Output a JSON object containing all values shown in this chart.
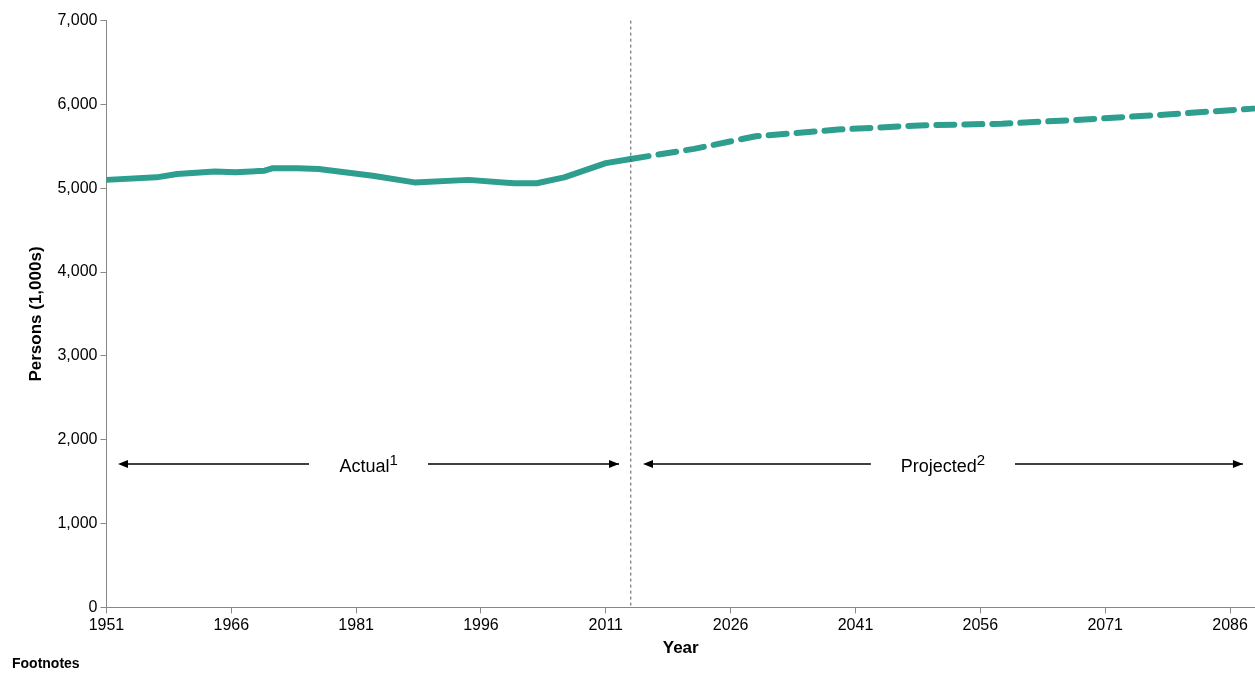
{
  "chart_data": {
    "type": "line",
    "xlabel": "Year",
    "ylabel": "Persons (1,000s)",
    "xlim": [
      1951,
      2089
    ],
    "xticks": [
      1951,
      1966,
      1981,
      1996,
      2011,
      2026,
      2041,
      2056,
      2071,
      2086
    ],
    "ylim": [
      0,
      7000
    ],
    "yticks": [
      0,
      {
        "value": 1000,
        "label": "1,000"
      },
      {
        "value": 2000,
        "label": "2,000"
      },
      {
        "value": 3000,
        "label": "3,000"
      },
      {
        "value": 4000,
        "label": "4,000"
      },
      {
        "value": 5000,
        "label": "5,000"
      },
      {
        "value": 6000,
        "label": "6,000"
      },
      {
        "value": 7000,
        "label": "7,000"
      }
    ],
    "grid": false,
    "legend": false,
    "series": [
      {
        "type": "line",
        "line_style": "solid",
        "color": "#2e9e8f",
        "x": [
          1951,
          1957,
          1959.5,
          1964,
          1966.5,
          1970,
          1971,
          1974,
          1976.5,
          1983,
          1988,
          1994.5,
          2000,
          2002.7,
          2006,
          2011,
          2014
        ],
        "values": [
          5100,
          5130,
          5170,
          5200,
          5190,
          5210,
          5240,
          5240,
          5230,
          5150,
          5070,
          5100,
          5060,
          5060,
          5130,
          5300,
          5350
        ]
      },
      {
        "type": "line",
        "line_style": "dashed",
        "color": "#2e9e8f",
        "x": [
          2014,
          2021.6,
          2029,
          2038.9,
          2048.7,
          2058.6,
          2068.5,
          2078.4,
          2088.8
        ],
        "values": [
          5350,
          5470,
          5620,
          5700,
          5750,
          5770,
          5820,
          5880,
          5950
        ]
      }
    ],
    "ref_lines": [
      {
        "axis": "x",
        "value": 2014,
        "line_style": "dotted",
        "color": "#595959"
      }
    ],
    "annotations": [
      "Actual$^{1}$",
      "Projected$^{2}$",
      "Footnotes"
    ]
  }
}
